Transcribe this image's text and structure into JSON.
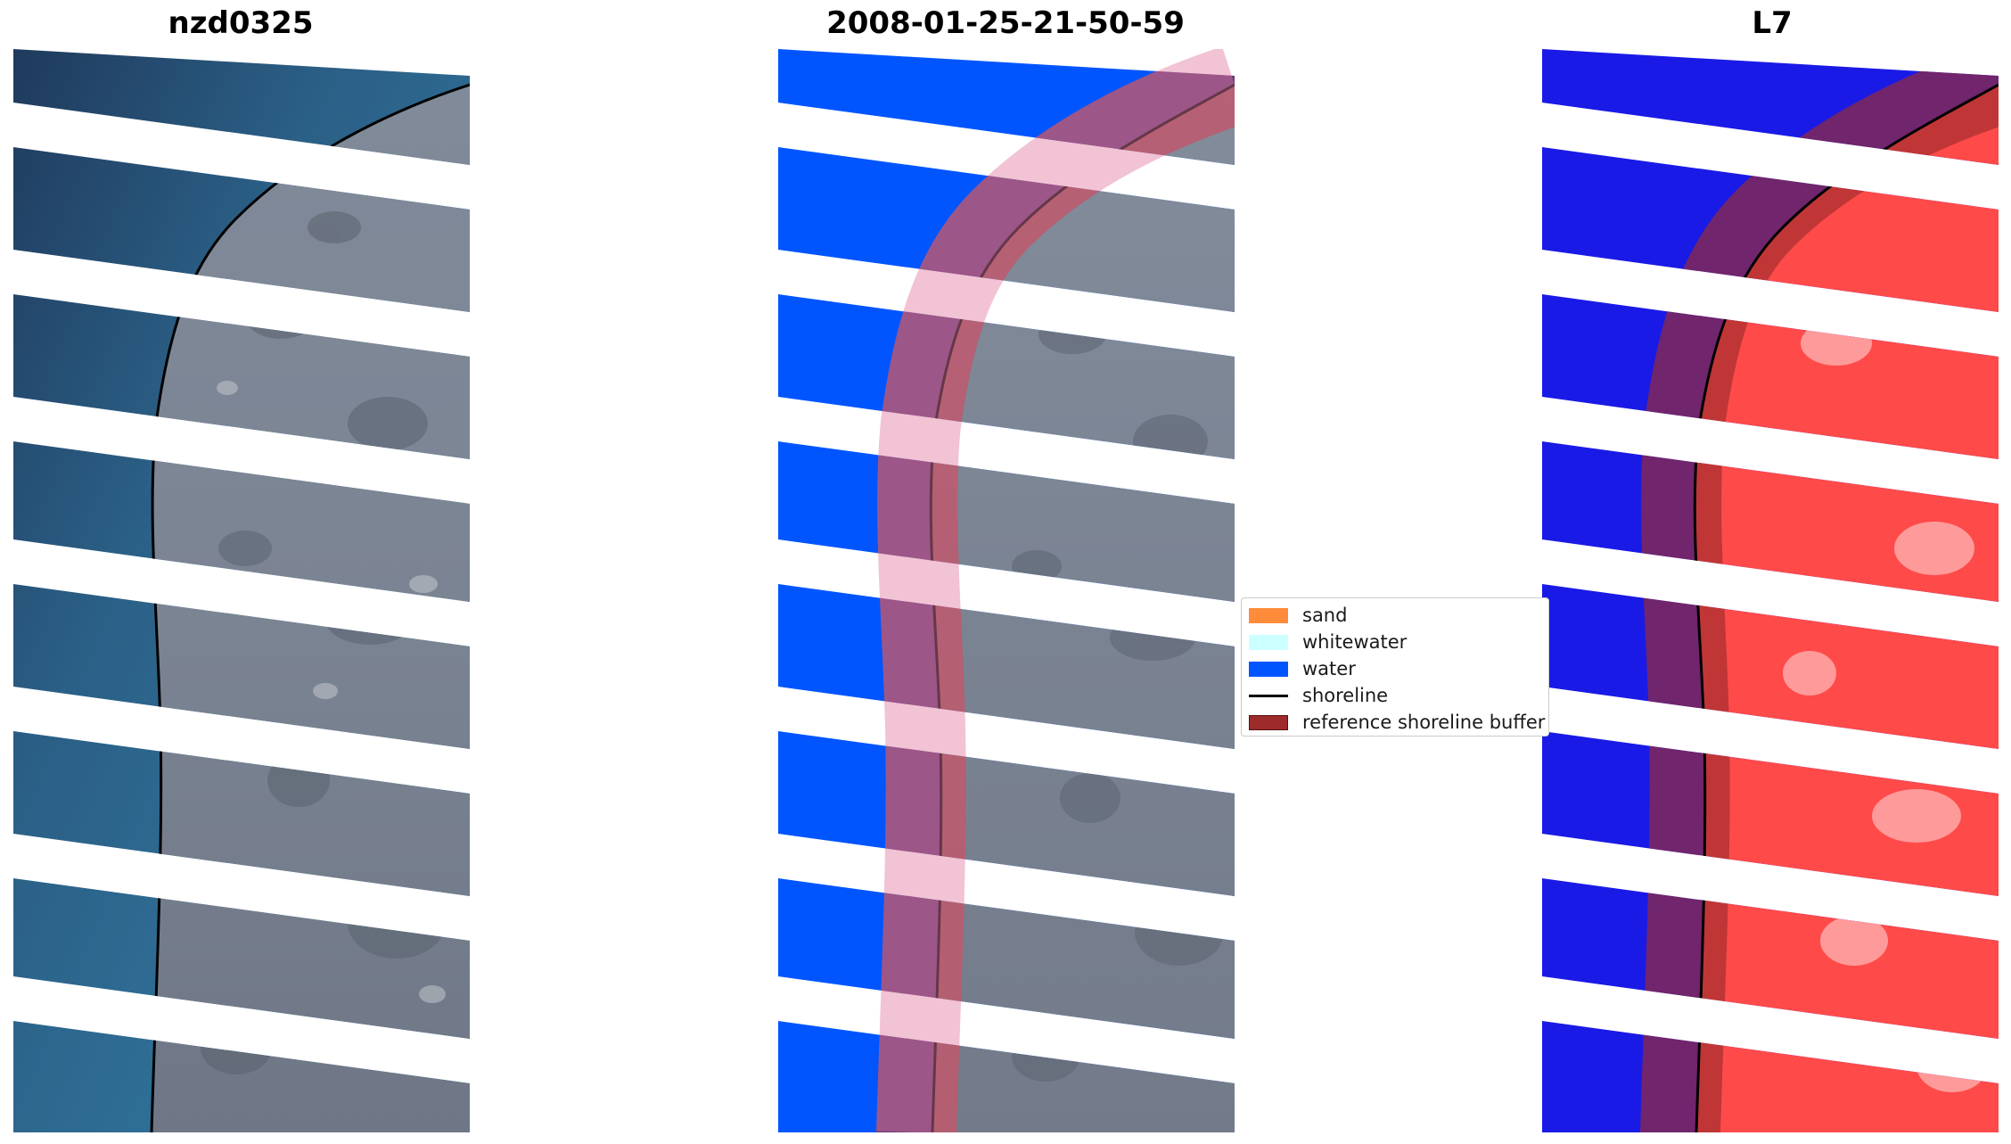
{
  "panels": [
    {
      "id": "rgb",
      "title": "nzd0325"
    },
    {
      "id": "classified",
      "title": "2008-01-25-21-50-59"
    },
    {
      "id": "mndwi",
      "title": "L7"
    }
  ],
  "legend": {
    "items": [
      {
        "label": "sand",
        "type": "patch",
        "color": "#ff8c3a"
      },
      {
        "label": "whitewater",
        "type": "patch",
        "color": "#ccffff"
      },
      {
        "label": "water",
        "type": "patch",
        "color": "#0055ff"
      },
      {
        "label": "shoreline",
        "type": "line",
        "color": "#000000"
      },
      {
        "label": "reference shoreline buffer",
        "type": "patch",
        "color": "#9e2b2b"
      }
    ]
  },
  "colors": {
    "sea_rgb": "#2f6a8f",
    "land_rgb": "#7a8190",
    "water_class": "#0055ff",
    "buffer_overlay": "#9e2b2b",
    "mndwi_water": "#1a1ae6",
    "mndwi_land": "#ff3a3a"
  }
}
